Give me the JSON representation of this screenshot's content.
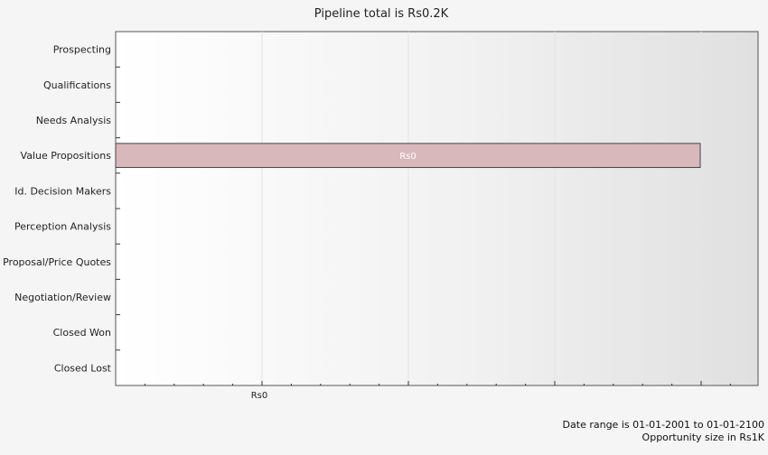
{
  "chart_data": {
    "type": "bar",
    "orientation": "horizontal",
    "title": "Pipeline total is Rs0.2K",
    "categories": [
      "Prospecting",
      "Qualifications",
      "Needs Analysis",
      "Value Propositions",
      "Id. Decision Makers",
      "Perception Analysis",
      "Proposal/Price Quotes",
      "Negotiation/Review",
      "Closed Won",
      "Closed Lost"
    ],
    "values": [
      0,
      0,
      0,
      0.2,
      0,
      0,
      0,
      0,
      0,
      0
    ],
    "data_labels": [
      "",
      "",
      "",
      "Rs0",
      "",
      "",
      "",
      "",
      "",
      ""
    ],
    "x_tick_labels": [
      "Rs0"
    ],
    "bar_color": "#d9b8bb",
    "grid": true,
    "legend": "none"
  },
  "footer": {
    "date_range": "Date range is 01-01-2001 to 01-01-2100",
    "opportunity_size": "Opportunity size in Rs1K"
  }
}
